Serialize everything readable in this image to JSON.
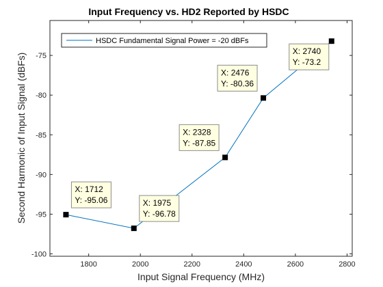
{
  "chart_data": {
    "type": "line",
    "title": "Input Frequency vs. HD2 Reported by HSDC",
    "xlabel": "Input Signal Frequency (MHz)",
    "ylabel": "Second Harmonic of Input Signal (dBFs)",
    "xlim": [
      1650,
      2820
    ],
    "ylim": [
      -100.3,
      -70.6
    ],
    "xticks": [
      1800,
      2000,
      2200,
      2400,
      2600,
      2800
    ],
    "yticks": [
      -100,
      -95,
      -90,
      -85,
      -80,
      -75
    ],
    "grid": false,
    "legend_position": "top-left",
    "series": [
      {
        "name": "HSDC Fundamental Signal Power = -20 dBFs",
        "color": "#0072BD",
        "x": [
          1712,
          1975,
          2328,
          2476,
          2740
        ],
        "y": [
          -95.06,
          -96.78,
          -87.85,
          -80.36,
          -73.2
        ]
      }
    ],
    "datatips": [
      {
        "x_text": "X: 1712",
        "y_text": "Y: -95.06"
      },
      {
        "x_text": "X: 1975",
        "y_text": "Y: -96.78"
      },
      {
        "x_text": "X: 2328",
        "y_text": "Y: -87.85"
      },
      {
        "x_text": "X: 2476",
        "y_text": "Y: -80.36"
      },
      {
        "x_text": "X: 2740",
        "y_text": "Y: -73.2"
      }
    ]
  }
}
